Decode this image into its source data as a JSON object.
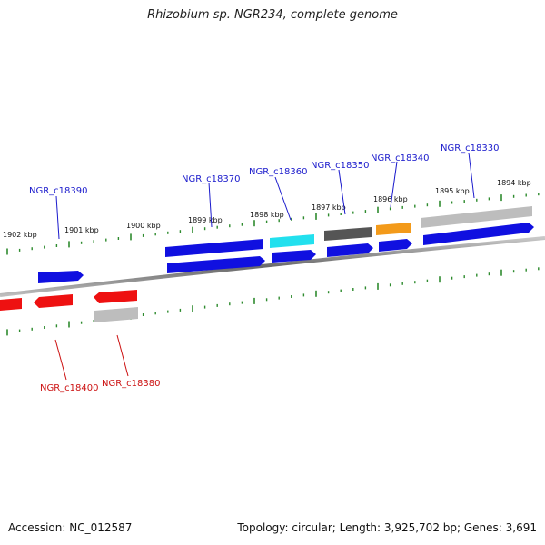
{
  "title": "Rhizobium sp. NGR234, complete genome",
  "footer": {
    "accession": "Accession: NC_012587",
    "summary": "Topology: circular; Length: 3,925,702 bp; Genes: 3,691"
  },
  "colors": {
    "backbone": "#7a7a7a",
    "tick": "#2e8b2e",
    "forward_label": "#1a1acc",
    "reverse_label": "#cc1111",
    "gene_blue": "#1010e0",
    "gene_red": "#ee1111",
    "gene_cyan": "#22e0ee",
    "gene_darkgray": "#555555",
    "gene_orange": "#f39a1a",
    "gene_lightgray": "#bdbdbd"
  },
  "scale_labels": [
    "1902 kbp",
    "1901 kbp",
    "1900 kbp",
    "1899 kbp",
    "1898 kbp",
    "1897 kbp",
    "1896 kbp",
    "1895 kbp",
    "1894 kbp"
  ],
  "gene_labels": {
    "forward": [
      "NGR_c18390",
      "NGR_c18370",
      "NGR_c18360",
      "NGR_c18350",
      "NGR_c18340",
      "NGR_c18330"
    ],
    "reverse": [
      "NGR_c18400",
      "NGR_c18380"
    ]
  },
  "features": [
    {
      "name": "forward-gene-1",
      "color": "gene_blue",
      "strand": "+",
      "kind": "arrow"
    },
    {
      "name": "forward-gene-2",
      "color": "gene_blue",
      "strand": "+",
      "kind": "arrow"
    },
    {
      "name": "forward-gene-3",
      "color": "gene_blue",
      "strand": "+",
      "kind": "arrow"
    },
    {
      "name": "forward-gene-4",
      "color": "gene_blue",
      "strand": "+",
      "kind": "arrow"
    },
    {
      "name": "forward-gene-5",
      "color": "gene_blue",
      "strand": "+",
      "kind": "arrow"
    },
    {
      "name": "forward-gene-6",
      "color": "gene_blue",
      "strand": "+",
      "kind": "arrow"
    },
    {
      "name": "forward-cds-long",
      "color": "gene_blue",
      "strand": "+",
      "kind": "arrow"
    },
    {
      "name": "forward-rna-cyan",
      "color": "gene_cyan",
      "strand": "+",
      "kind": "box"
    },
    {
      "name": "forward-misc-darkgray",
      "color": "gene_darkgray",
      "strand": "+",
      "kind": "box"
    },
    {
      "name": "forward-misc-orange",
      "color": "gene_orange",
      "strand": "+",
      "kind": "box"
    },
    {
      "name": "forward-misc-lightgray",
      "color": "gene_lightgray",
      "strand": "+",
      "kind": "box"
    },
    {
      "name": "reverse-gene-1",
      "color": "gene_red",
      "strand": "-",
      "kind": "arrow"
    },
    {
      "name": "reverse-gene-2",
      "color": "gene_red",
      "strand": "-",
      "kind": "arrow"
    },
    {
      "name": "reverse-gene-3",
      "color": "gene_red",
      "strand": "-",
      "kind": "arrow"
    },
    {
      "name": "reverse-misc-lightgray",
      "color": "gene_lightgray",
      "strand": "-",
      "kind": "box"
    }
  ]
}
